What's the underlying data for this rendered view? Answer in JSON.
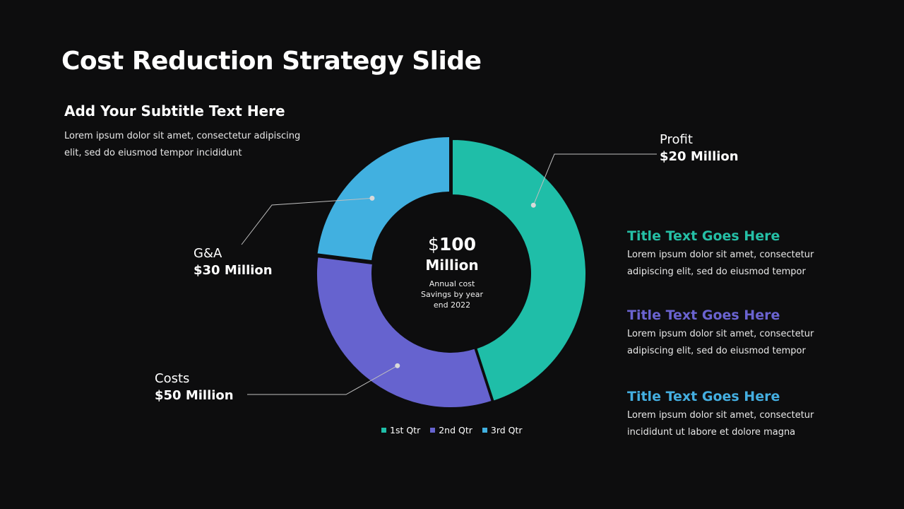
{
  "slide": {
    "title": "Cost Reduction Strategy Slide",
    "subtitle": "Add Your Subtitle Text Here",
    "intro_lines": [
      "Lorem ipsum dolor sit amet, consectetur adipiscing",
      "elit, sed do eiusmod tempor incididunt"
    ]
  },
  "callouts": {
    "profit": {
      "name": "Profit",
      "value": "$20 Million"
    },
    "ga": {
      "name": "G&A",
      "value": "$30 Million"
    },
    "costs": {
      "name": "Costs",
      "value": "$50 Million"
    }
  },
  "center": {
    "currency": "$",
    "amount": "100",
    "unit": "Million",
    "caption_lines": [
      "Annual cost",
      "Savings by year",
      "end 2022"
    ]
  },
  "info_blocks": [
    {
      "title": "Title Text Goes Here",
      "color": "#25bfa6",
      "lines": [
        "Lorem ipsum dolor sit amet, consectetur",
        "adipiscing elit, sed do eiusmod tempor"
      ]
    },
    {
      "title": "Title Text Goes Here",
      "color": "#6a63d0",
      "lines": [
        "Lorem ipsum dolor sit amet, consectetur",
        "adipiscing elit, sed do eiusmod tempor"
      ]
    },
    {
      "title": "Title Text Goes Here",
      "color": "#44aee0",
      "lines": [
        "Lorem ipsum dolor sit amet, consectetur",
        "incididunt ut labore et dolore magna"
      ]
    }
  ],
  "chart_data": {
    "type": "pie",
    "subtype": "donut",
    "title": "",
    "categories": [
      "1st Qtr",
      "2nd Qtr",
      "3rd Qtr"
    ],
    "values": [
      45,
      32,
      23
    ],
    "colors": [
      "#1fbea8",
      "#6663cf",
      "#41b0e0"
    ],
    "legend_position": "bottom",
    "legend": [
      "1st Qtr",
      "2nd Qtr",
      "3rd Qtr"
    ]
  }
}
